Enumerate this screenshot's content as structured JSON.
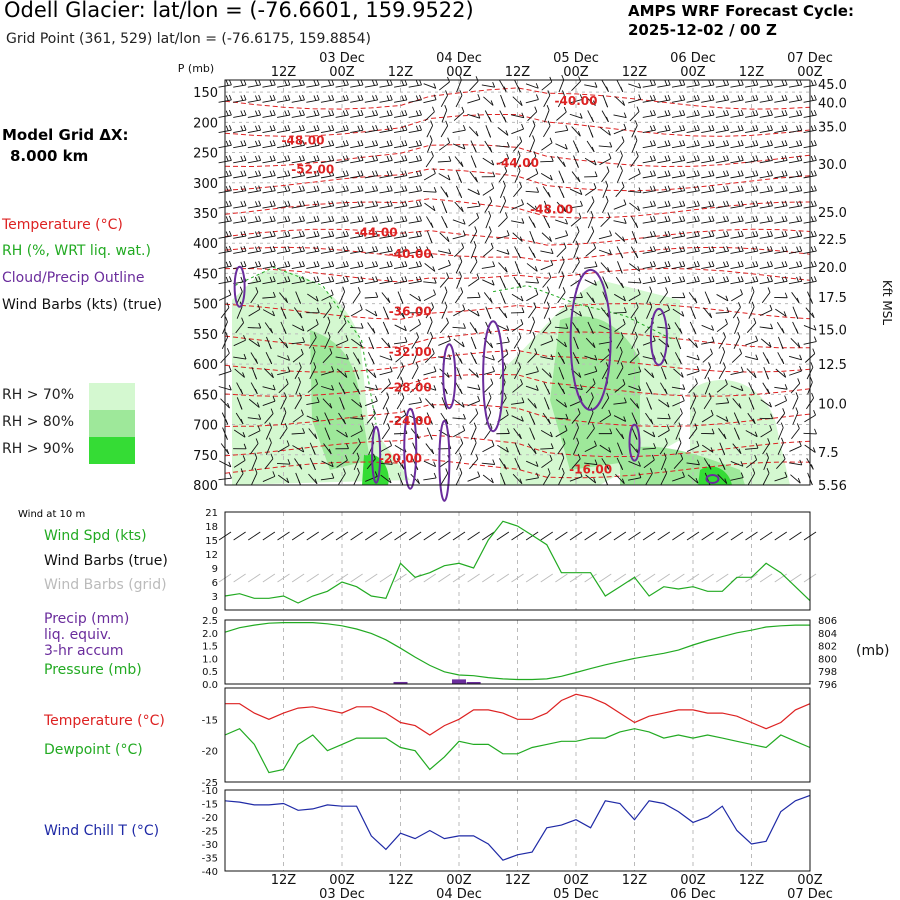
{
  "header": {
    "station_title": "Odell Glacier:  lat/lon = (-76.6601, 159.9522)",
    "grid_point": "Grid Point (361, 529) lat/lon = (-76.6175, 159.8854)",
    "cycle_line1": "AMPS WRF Forecast Cycle:",
    "cycle_line2": "2025-12-02 / 00  Z"
  },
  "model_grid": {
    "label": "Model Grid ΔX:",
    "value": "8.000 km"
  },
  "legend": {
    "temperature": "Temperature (°C)",
    "rh": "RH (%, WRT liq. wat.)",
    "cloud": "Cloud/Precip Outline",
    "wind": "Wind Barbs (kts) (true)",
    "rh70": "RH > 70%",
    "rh80": "RH > 80%",
    "rh90": "RH > 90%"
  },
  "colors": {
    "temperature": "#dd2222",
    "rh_line": "#22aa22",
    "cloud": "#6a2c9c",
    "dewpoint": "#22aa22",
    "windchill": "#1f2aa6",
    "rh70": "#d4f8d0",
    "rh80": "#9ee89a",
    "rh90": "#35dc35"
  },
  "panels": {
    "wind10_label": "Wind at 10 m",
    "windspd_label": "Wind Spd (kts)",
    "windbarbs_true_label": "Wind Barbs (true)",
    "windbarbs_grid_label": "Wind Barbs (grid)",
    "precip_label1": "Precip (mm)",
    "precip_label2": "liq. equiv.",
    "precip_label3": "3-hr accum",
    "pressure_label": "Pressure (mb)",
    "pressure_unit": "(mb)",
    "temp_label": "Temperature (°C)",
    "dewpoint_label": "Dewpoint (°C)",
    "windchill_label": "Wind Chill T (°C)",
    "kft_label": "Kft MSL"
  },
  "chart_data": [
    {
      "type": "line",
      "panel": "cross-section",
      "ylabel": "P (mb)",
      "time_ticks": [
        "12Z",
        "00Z",
        "12Z",
        "00Z",
        "12Z",
        "00Z",
        "12Z",
        "00Z",
        "12Z",
        "00Z"
      ],
      "date_labels": [
        "03 Dec",
        "04 Dec",
        "05 Dec",
        "06 Dec",
        "07 Dec"
      ],
      "pressure_ticks": [
        150,
        200,
        250,
        300,
        350,
        400,
        450,
        500,
        550,
        600,
        650,
        700,
        750,
        800
      ],
      "height_ticks": [
        {
          "label": "45.0",
          "p": 137
        },
        {
          "label": "40.0",
          "p": 167
        },
        {
          "label": "35.0",
          "p": 207
        },
        {
          "label": "30.0",
          "p": 269
        },
        {
          "label": "25.0",
          "p": 348
        },
        {
          "label": "22.5",
          "p": 393
        },
        {
          "label": "20.0",
          "p": 439
        },
        {
          "label": "17.5",
          "p": 489
        },
        {
          "label": "15.0",
          "p": 543
        },
        {
          "label": "12.5",
          "p": 600
        },
        {
          "label": "10.0",
          "p": 665
        },
        {
          "label": "7.5",
          "p": 745
        },
        {
          "label": "5.56",
          "p": 800
        }
      ],
      "temperature_contour_labels": [
        {
          "text": "-40.00",
          "t": 72,
          "p": 165
        },
        {
          "text": "-48.00",
          "t": 16,
          "p": 230
        },
        {
          "text": "-52.00",
          "t": 18,
          "p": 278
        },
        {
          "text": "-44.00",
          "t": 60,
          "p": 267
        },
        {
          "text": "-48.00",
          "t": 67,
          "p": 344
        },
        {
          "text": "-44.00",
          "t": 31,
          "p": 382
        },
        {
          "text": "-40.00",
          "t": 38,
          "p": 418
        },
        {
          "text": "-36.00",
          "t": 38,
          "p": 513
        },
        {
          "text": "-32.00",
          "t": 38,
          "p": 580
        },
        {
          "text": "-28.00",
          "t": 38,
          "p": 639
        },
        {
          "text": "-24.00",
          "t": 38,
          "p": 694
        },
        {
          "text": "-20.00",
          "t": 36,
          "p": 756
        },
        {
          "text": "-16.00",
          "t": 75,
          "p": 774
        }
      ]
    },
    {
      "type": "line",
      "panel": "wind-10m",
      "yticks": [
        0,
        3,
        6,
        9,
        12,
        15,
        18,
        21
      ],
      "ylim": [
        0,
        21
      ],
      "series": [
        {
          "name": "Wind Spd (kts)",
          "x": [
            0,
            3,
            6,
            9,
            12,
            15,
            18,
            21,
            24,
            27,
            30,
            33,
            36,
            39,
            42,
            45,
            48,
            51,
            54,
            57,
            60,
            63,
            66,
            69,
            72,
            75,
            78,
            81,
            84,
            87,
            90,
            93,
            96,
            99,
            102,
            105,
            108,
            111,
            114,
            117,
            120
          ],
          "values": [
            3,
            3.5,
            2.5,
            2.5,
            3,
            1.5,
            3,
            4,
            6,
            5,
            3,
            2.5,
            10,
            7,
            8,
            9.5,
            10,
            9,
            15,
            19,
            18,
            16,
            14,
            8,
            8,
            8,
            3,
            5,
            7,
            3,
            5,
            4.5,
            5,
            4,
            4,
            7,
            7,
            10,
            8,
            5,
            2
          ]
        }
      ]
    },
    {
      "type": "line",
      "panel": "precip-pressure",
      "precip_yticks": [
        0.0,
        0.5,
        1.0,
        1.5,
        2.0,
        2.5
      ],
      "pressure_yticks": [
        796,
        798,
        800,
        802,
        804,
        806
      ],
      "series": [
        {
          "name": "Pressure (mb)",
          "x": [
            0,
            3,
            6,
            9,
            12,
            15,
            18,
            21,
            24,
            27,
            30,
            33,
            36,
            39,
            42,
            45,
            48,
            51,
            54,
            57,
            60,
            63,
            66,
            69,
            72,
            75,
            78,
            81,
            84,
            87,
            90,
            93,
            96,
            99,
            102,
            105,
            108,
            111,
            114,
            117,
            120
          ],
          "values": [
            804.1,
            804.8,
            805.2,
            805.5,
            805.6,
            805.6,
            805.6,
            805.4,
            805.1,
            804.6,
            803.9,
            802.9,
            801.6,
            800.2,
            798.9,
            797.9,
            797.4,
            797.3,
            797.0,
            796.8,
            796.7,
            796.7,
            796.8,
            797.2,
            797.8,
            798.4,
            799.0,
            799.5,
            800.0,
            800.4,
            800.8,
            801.3,
            802.1,
            802.8,
            803.4,
            804.0,
            804.4,
            804.9,
            805.1,
            805.2,
            805.2
          ]
        },
        {
          "name": "Precip (mm)",
          "type": "bar",
          "x": [
            36,
            48,
            51
          ],
          "values": [
            0.08,
            0.18,
            0.05
          ]
        }
      ]
    },
    {
      "type": "line",
      "panel": "temp-dewpoint",
      "yticks": [
        -25,
        -20,
        -15
      ],
      "ylim": [
        -25,
        -10
      ],
      "series": [
        {
          "name": "Temperature (°C)",
          "x": [
            0,
            3,
            6,
            9,
            12,
            15,
            18,
            21,
            24,
            27,
            30,
            33,
            36,
            39,
            42,
            45,
            48,
            51,
            54,
            57,
            60,
            63,
            66,
            69,
            72,
            75,
            78,
            81,
            84,
            87,
            90,
            93,
            96,
            99,
            102,
            105,
            108,
            111,
            114,
            117,
            120
          ],
          "values": [
            -12.5,
            -12.5,
            -14,
            -15,
            -14,
            -13.2,
            -13,
            -13.5,
            -14,
            -13,
            -13,
            -14,
            -15.5,
            -16,
            -17.5,
            -16,
            -15,
            -13.5,
            -13.5,
            -14,
            -15,
            -15,
            -14,
            -12,
            -11,
            -11.5,
            -12.5,
            -14,
            -15.5,
            -14.5,
            -14,
            -13.5,
            -13.5,
            -14,
            -14,
            -14.5,
            -15.5,
            -16.5,
            -15.5,
            -13.5,
            -12.5
          ]
        },
        {
          "name": "Dewpoint (°C)",
          "x": [
            0,
            3,
            6,
            9,
            12,
            15,
            18,
            21,
            24,
            27,
            30,
            33,
            36,
            39,
            42,
            45,
            48,
            51,
            54,
            57,
            60,
            63,
            66,
            69,
            72,
            75,
            78,
            81,
            84,
            87,
            90,
            93,
            96,
            99,
            102,
            105,
            108,
            111,
            114,
            117,
            120
          ],
          "values": [
            -17.5,
            -16.5,
            -19,
            -23.5,
            -23,
            -19,
            -17.5,
            -20,
            -19,
            -18,
            -18,
            -18,
            -19.5,
            -20,
            -23,
            -21,
            -18.5,
            -19,
            -19,
            -20.5,
            -20.5,
            -19.5,
            -19,
            -18.5,
            -18.5,
            -18,
            -18,
            -17,
            -16.5,
            -17,
            -18,
            -17.5,
            -18,
            -17.5,
            -18,
            -18.5,
            -19,
            -19.5,
            -17.5,
            -18.5,
            -19.5
          ]
        }
      ]
    },
    {
      "type": "line",
      "panel": "windchill",
      "yticks": [
        -40,
        -35,
        -30,
        -25,
        -20,
        -15,
        -10
      ],
      "ylim": [
        -40,
        -10
      ],
      "series": [
        {
          "name": "Wind Chill T (°C)",
          "x": [
            0,
            3,
            6,
            9,
            12,
            15,
            18,
            21,
            24,
            27,
            30,
            33,
            36,
            39,
            42,
            45,
            48,
            51,
            54,
            57,
            60,
            63,
            66,
            69,
            72,
            75,
            78,
            81,
            84,
            87,
            90,
            93,
            96,
            99,
            102,
            105,
            108,
            111,
            114,
            117,
            120
          ],
          "values": [
            -14,
            -14.5,
            -15.5,
            -15.5,
            -15,
            -17.5,
            -17,
            -15.5,
            -16,
            -16,
            -27,
            -32,
            -26,
            -28,
            -25,
            -28,
            -27,
            -27,
            -30,
            -36,
            -34,
            -33,
            -24,
            -23,
            -21,
            -24,
            -14,
            -15,
            -21,
            -14,
            -15,
            -18,
            -22,
            -20,
            -16,
            -25,
            -30,
            -29,
            -18,
            -14,
            -12
          ]
        }
      ]
    }
  ]
}
